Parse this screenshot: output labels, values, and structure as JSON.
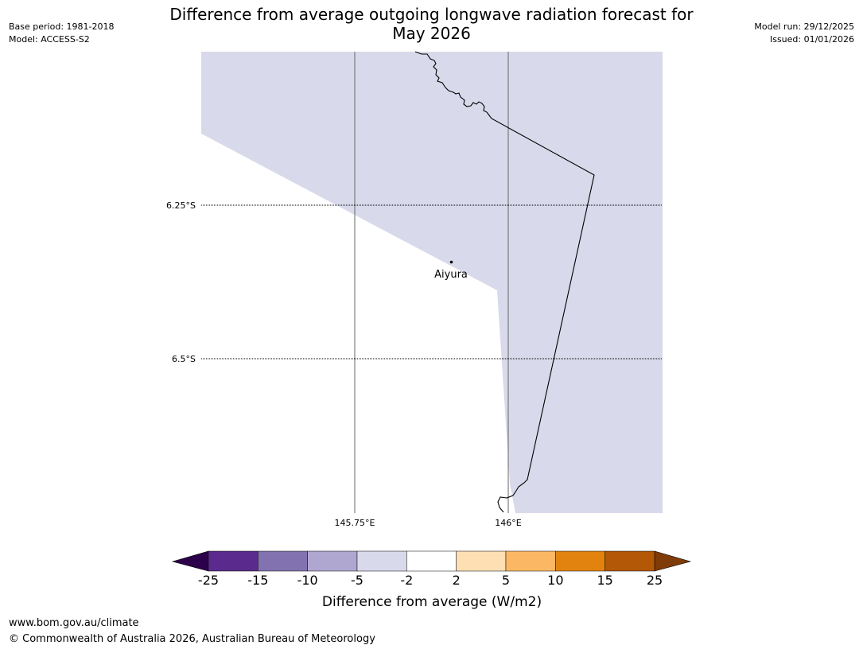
{
  "title": {
    "line1": "Difference from average outgoing longwave radiation forecast for",
    "line2": "May 2026"
  },
  "meta": {
    "base_period": "Base period: 1981-2018",
    "model": "Model: ACCESS-S2",
    "model_run": "Model run: 29/12/2025",
    "issued": "Issued: 01/01/2026"
  },
  "map": {
    "lat_labels": [
      "6.25°S",
      "6.5°S"
    ],
    "lon_labels": [
      "145.75°E",
      "146°E"
    ],
    "place": {
      "name": "Aiyura"
    },
    "fill_color": "#d8d9ea"
  },
  "colorbar": {
    "title": "Difference from average (W/m2)",
    "tick_labels": [
      "-25",
      "-15",
      "-10",
      "-5",
      "-2",
      "2",
      "5",
      "10",
      "15",
      "25"
    ],
    "colors": [
      "#5a2b8c",
      "#8272b0",
      "#afa7d0",
      "#d8d9ea",
      "#ffffff",
      "#fddfb3",
      "#fbb763",
      "#e2830f",
      "#b35806"
    ],
    "under_color": "#2d004b",
    "over_color": "#7f3b08"
  },
  "footer": {
    "url": "www.bom.gov.au/climate",
    "copyright": "© Commonwealth of Australia 2026, Australian Bureau of Meteorology"
  }
}
